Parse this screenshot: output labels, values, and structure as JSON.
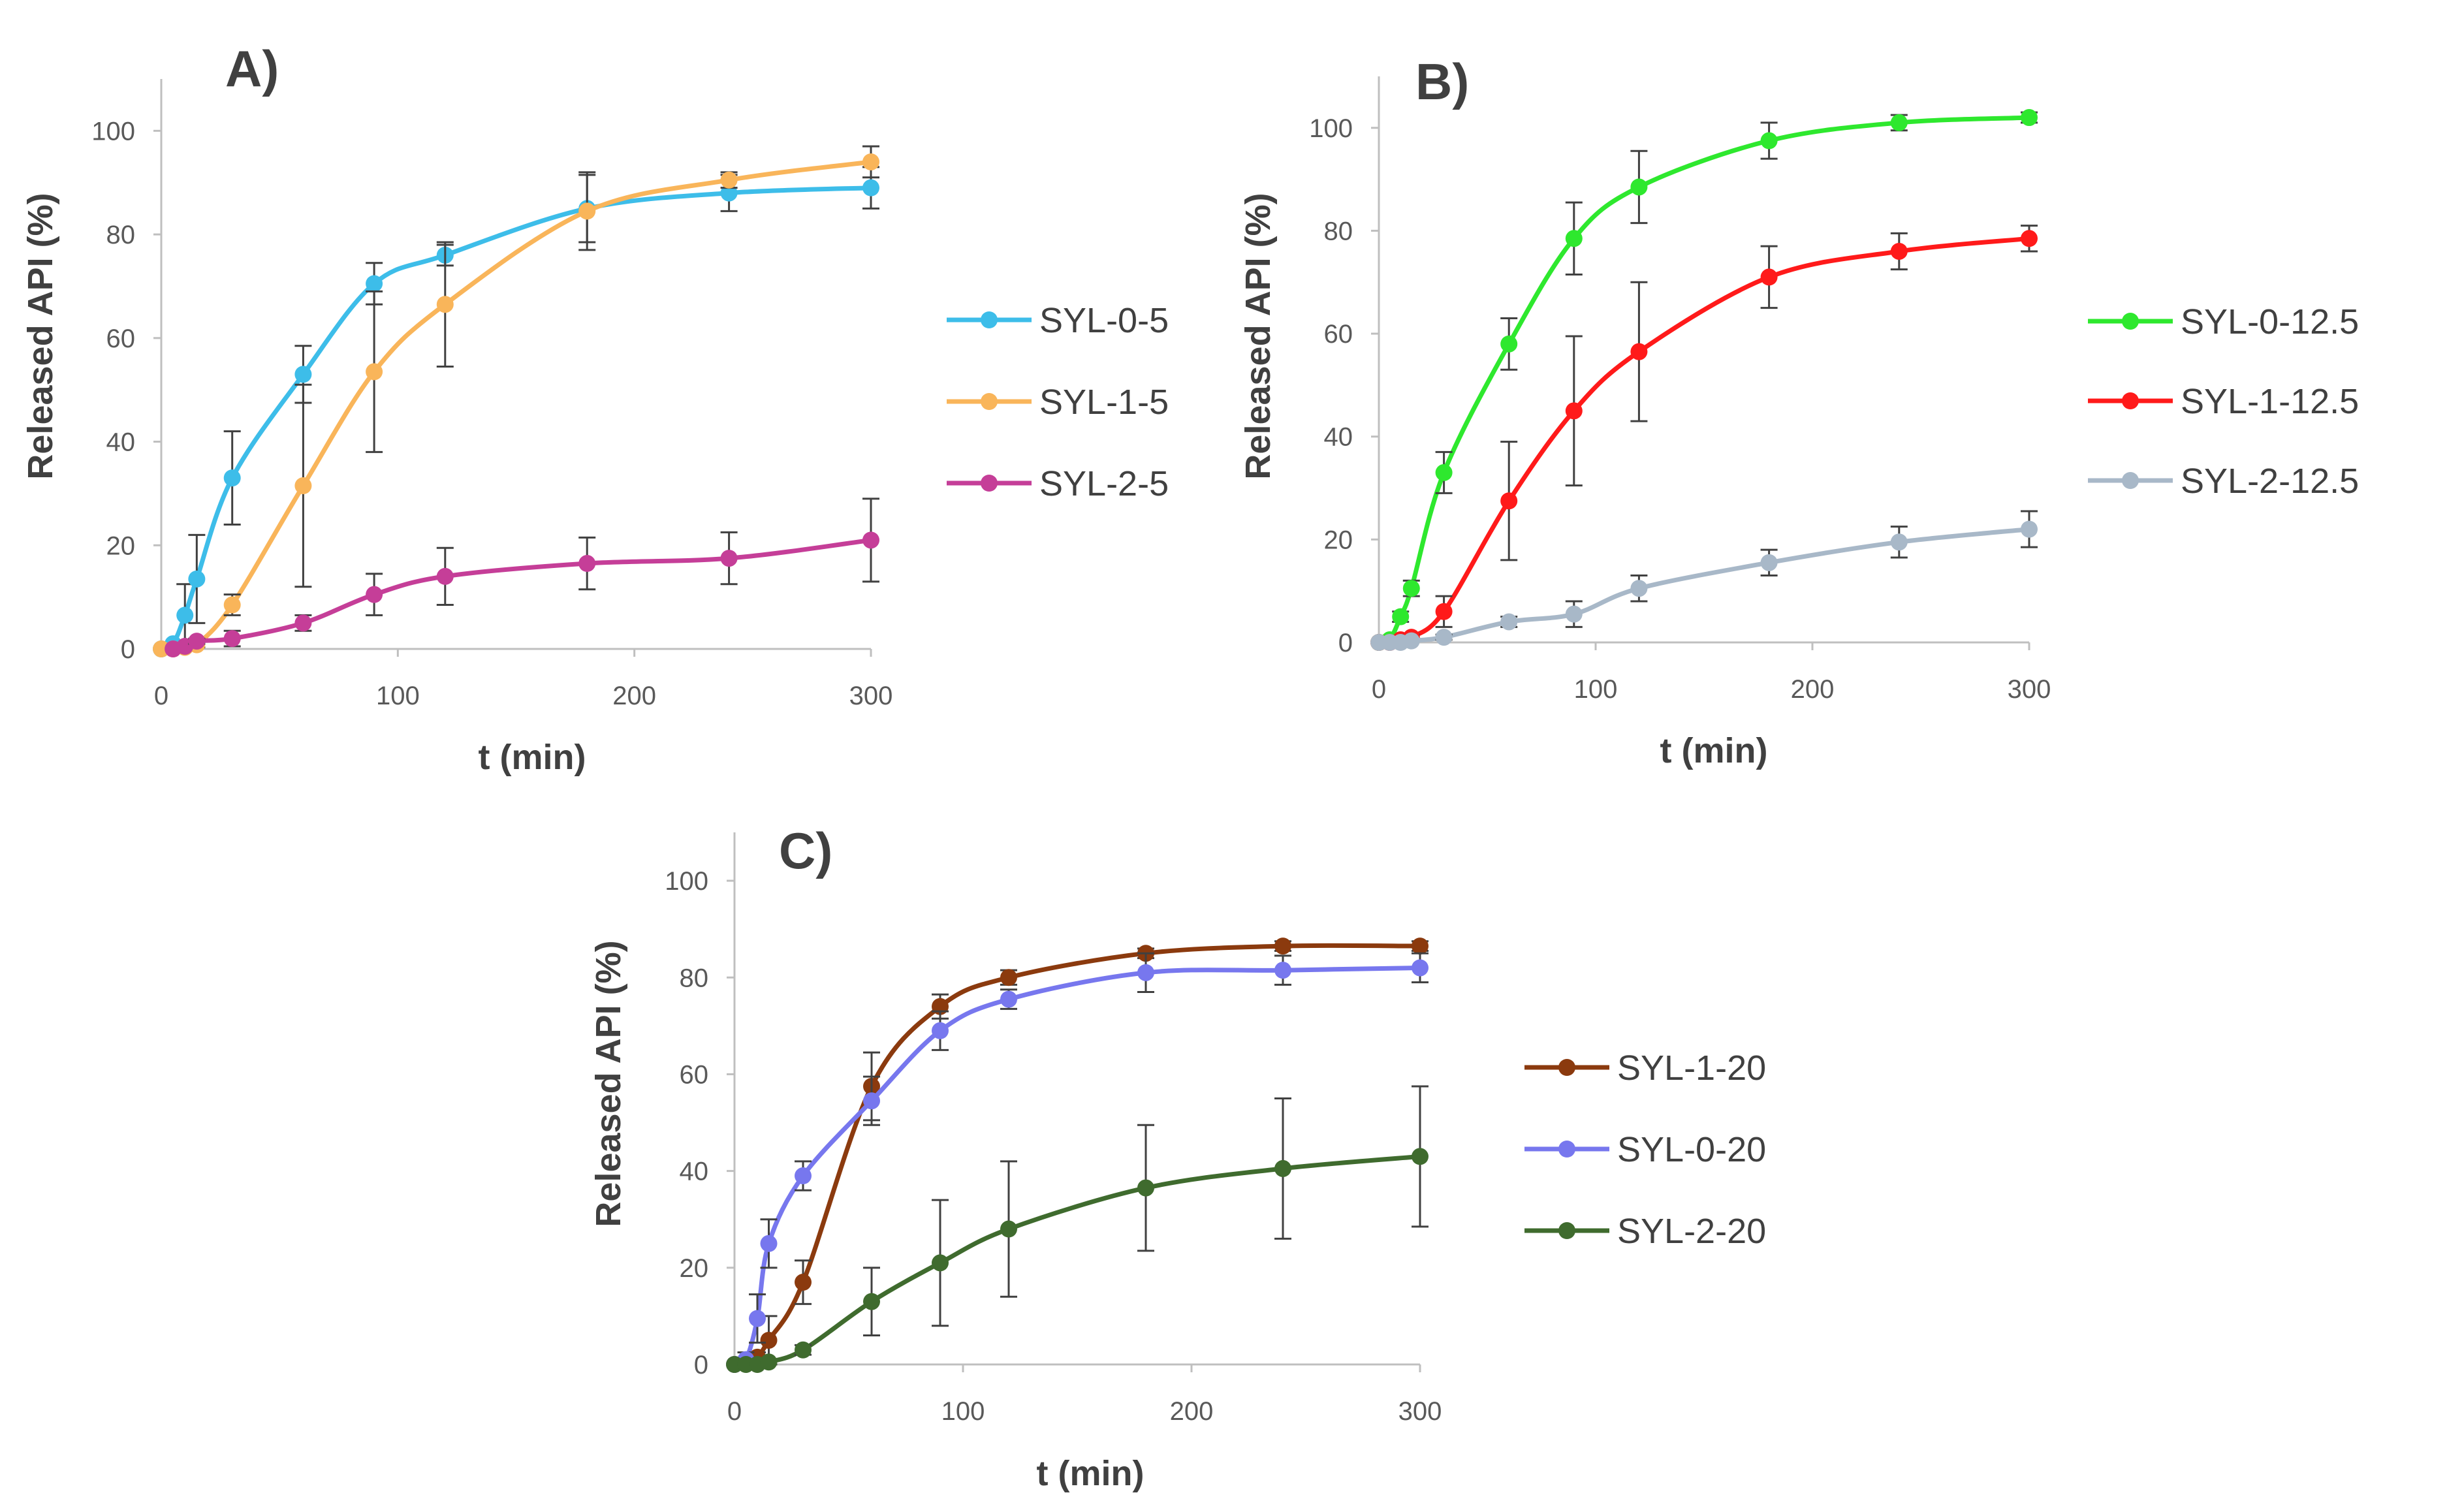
{
  "chart_data": [
    {
      "type": "line",
      "panel_label": "A)",
      "xlabel": "t (min)",
      "ylabel": "Released API (%)",
      "xlim": [
        0,
        300
      ],
      "ylim": [
        0,
        110
      ],
      "xticks": [
        0,
        100,
        200,
        300
      ],
      "yticks": [
        0,
        20,
        40,
        60,
        80,
        100
      ],
      "series": [
        {
          "name": "SYL-0-5",
          "color": "#3dbde9",
          "x": [
            0,
            5,
            10,
            15,
            30,
            60,
            90,
            120,
            180,
            240,
            300
          ],
          "y": [
            0,
            1,
            6.5,
            13.5,
            33,
            53,
            70.5,
            76,
            85,
            88,
            89
          ],
          "err": [
            0,
            0,
            6,
            8.5,
            9,
            5.5,
            4,
            2,
            6.5,
            3.5,
            4
          ]
        },
        {
          "name": "SYL-1-5",
          "color": "#f9b55a",
          "x": [
            0,
            5,
            10,
            15,
            30,
            60,
            90,
            120,
            180,
            240,
            300
          ],
          "y": [
            0,
            0,
            0.3,
            0.8,
            8.5,
            31.5,
            53.5,
            66.5,
            84.5,
            90.5,
            94
          ],
          "err": [
            0,
            0,
            0,
            0.5,
            2,
            19.5,
            15.5,
            12,
            7.5,
            1.5,
            3
          ]
        },
        {
          "name": "SYL-2-5",
          "color": "#c53e98",
          "x": [
            5,
            10,
            15,
            30,
            60,
            90,
            120,
            180,
            240,
            300
          ],
          "y": [
            0,
            0.5,
            1.5,
            2,
            5,
            10.5,
            14,
            16.5,
            17.5,
            21
          ],
          "err": [
            0,
            0,
            0.5,
            1.5,
            1.5,
            4,
            5.5,
            5,
            5,
            8
          ]
        }
      ]
    },
    {
      "type": "line",
      "panel_label": "B)",
      "xlabel": "t (min)",
      "ylabel": "Released API (%)",
      "xlim": [
        0,
        300
      ],
      "ylim": [
        0,
        110
      ],
      "xticks": [
        0,
        100,
        200,
        300
      ],
      "yticks": [
        0,
        20,
        40,
        60,
        80,
        100
      ],
      "series": [
        {
          "name": "SYL-0-12.5",
          "color": "#2ee82e",
          "x": [
            0,
            5,
            10,
            15,
            30,
            60,
            90,
            120,
            180,
            240,
            300
          ],
          "y": [
            0,
            0.5,
            5,
            10.5,
            33,
            58,
            78.5,
            88.5,
            97.5,
            101,
            102
          ],
          "err": [
            0,
            0,
            1,
            1.5,
            4,
            5,
            7,
            7,
            3.5,
            1.5,
            1
          ]
        },
        {
          "name": "SYL-1-12.5",
          "color": "#ff1a1a",
          "x": [
            0,
            5,
            10,
            15,
            30,
            60,
            90,
            120,
            180,
            240,
            300
          ],
          "y": [
            0,
            0,
            0.5,
            1,
            6,
            27.5,
            45,
            56.5,
            71,
            76,
            78.5
          ],
          "err": [
            0,
            0,
            0,
            0.5,
            3,
            11.5,
            14.5,
            13.5,
            6,
            3.5,
            2.5
          ]
        },
        {
          "name": "SYL-2-12.5",
          "color": "#a8b8c8",
          "x": [
            0,
            5,
            10,
            15,
            30,
            60,
            90,
            120,
            180,
            240,
            300
          ],
          "y": [
            0,
            0,
            0,
            0.3,
            1,
            4,
            5.5,
            10.5,
            15.5,
            19.5,
            22
          ],
          "err": [
            0,
            0,
            0,
            0,
            0.5,
            1,
            2.5,
            2.5,
            2.5,
            3,
            3.5
          ]
        }
      ]
    },
    {
      "type": "line",
      "panel_label": "C)",
      "xlabel": "t (min)",
      "ylabel": "Released API (%)",
      "xlim": [
        0,
        300
      ],
      "ylim": [
        0,
        110
      ],
      "xticks": [
        0,
        100,
        200,
        300
      ],
      "yticks": [
        0,
        20,
        40,
        60,
        80,
        100
      ],
      "series": [
        {
          "name": "SYL-1-20",
          "color": "#8b3a0e",
          "x": [
            0,
            5,
            10,
            15,
            30,
            60,
            90,
            120,
            180,
            240,
            300
          ],
          "y": [
            0,
            0.5,
            1.5,
            5,
            17,
            57.5,
            74,
            80,
            85,
            86.5,
            86.5
          ],
          "err": [
            0,
            0,
            1,
            5,
            4.5,
            7,
            2.5,
            1.5,
            1,
            1,
            1
          ]
        },
        {
          "name": "SYL-0-20",
          "color": "#7777ee",
          "x": [
            0,
            5,
            10,
            15,
            30,
            60,
            90,
            120,
            180,
            240,
            300
          ],
          "y": [
            0,
            1,
            9.5,
            25,
            39,
            54.5,
            69,
            75.5,
            81,
            81.5,
            82
          ],
          "err": [
            0,
            1.5,
            5,
            5,
            3,
            5,
            4,
            2,
            4,
            3,
            3
          ]
        },
        {
          "name": "SYL-2-20",
          "color": "#3f6b2e",
          "x": [
            0,
            5,
            10,
            15,
            30,
            60,
            90,
            120,
            180,
            240,
            300
          ],
          "y": [
            0,
            0,
            0,
            0.5,
            3,
            13,
            21,
            28,
            36.5,
            40.5,
            43
          ],
          "err": [
            0,
            0,
            0,
            0,
            1,
            7,
            13,
            14,
            13,
            14.5,
            14.5
          ]
        }
      ]
    }
  ]
}
